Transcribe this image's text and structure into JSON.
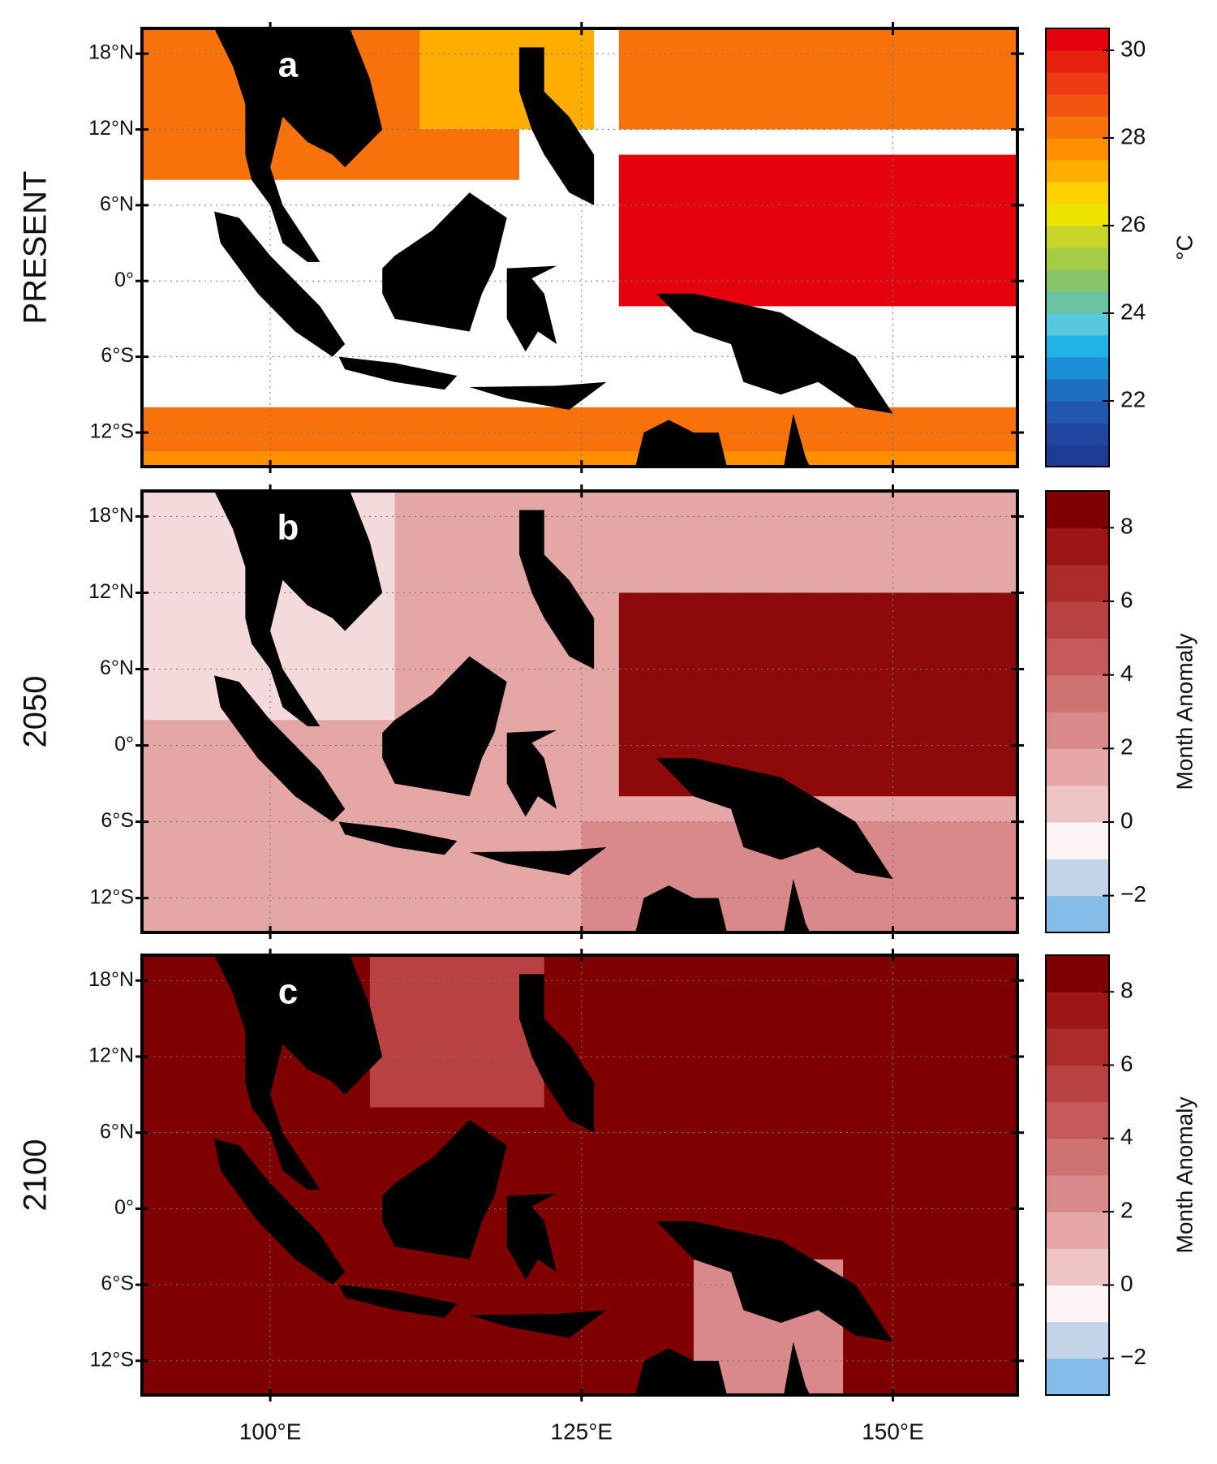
{
  "lon_range": [
    89.7,
    160
  ],
  "lat_range": [
    -14.7,
    20
  ],
  "lon_ticks": [
    {
      "value": 100,
      "label": "100°E"
    },
    {
      "value": 125,
      "label": "125°E"
    },
    {
      "value": 150,
      "label": "150°E"
    }
  ],
  "lat_ticks": [
    {
      "value": 18,
      "label": "18°N"
    },
    {
      "value": 12,
      "label": "12°N"
    },
    {
      "value": 6,
      "label": "6°N"
    },
    {
      "value": 0,
      "label": "0°"
    },
    {
      "value": -6,
      "label": "6°S"
    },
    {
      "value": -12,
      "label": "12°S"
    }
  ],
  "panels": [
    {
      "label": "a",
      "row_label": "PRESENT",
      "colorbar": {
        "label": "°C",
        "range": [
          20.5,
          30.5
        ],
        "ticks": [
          22,
          24,
          26,
          28,
          30
        ],
        "colors": [
          "#1f3a93",
          "#20469f",
          "#2158ad",
          "#1e6fc0",
          "#1c8fd8",
          "#22b3e8",
          "#58c8dc",
          "#6cc3a3",
          "#86c56a",
          "#a6cb45",
          "#c8d62a",
          "#eee300",
          "#ffd100",
          "#ffae00",
          "#fd8f00",
          "#f7720a",
          "#f15510",
          "#ec3a12",
          "#e8210f",
          "#e4000c"
        ]
      }
    },
    {
      "label": "b",
      "row_label": "2050",
      "colorbar": {
        "label": "Month Anomaly",
        "range": [
          -3,
          9
        ],
        "ticks": [
          {
            "value": -2,
            "label": "−2"
          },
          0,
          2,
          4,
          6,
          8
        ],
        "colors": [
          "#85bde8",
          "#c3d4e8",
          "#fdf5f5",
          "#eec5c5",
          "#e5a6a6",
          "#d98989",
          "#cf7272",
          "#c45a5a",
          "#b84242",
          "#ac2b2b",
          "#9d1515",
          "#7e0000"
        ]
      }
    },
    {
      "label": "c",
      "row_label": "2100",
      "colorbar": {
        "label": "Month Anomaly",
        "range": [
          -3,
          9
        ],
        "ticks": [
          {
            "value": -2,
            "label": "−2"
          },
          0,
          2,
          4,
          6,
          8
        ],
        "colors": [
          "#85bde8",
          "#c3d4e8",
          "#fdf5f5",
          "#eec5c5",
          "#e5a6a6",
          "#d98989",
          "#cf7272",
          "#c45a5a",
          "#b84242",
          "#ac2b2b",
          "#9d1515",
          "#7e0000"
        ]
      }
    }
  ]
}
